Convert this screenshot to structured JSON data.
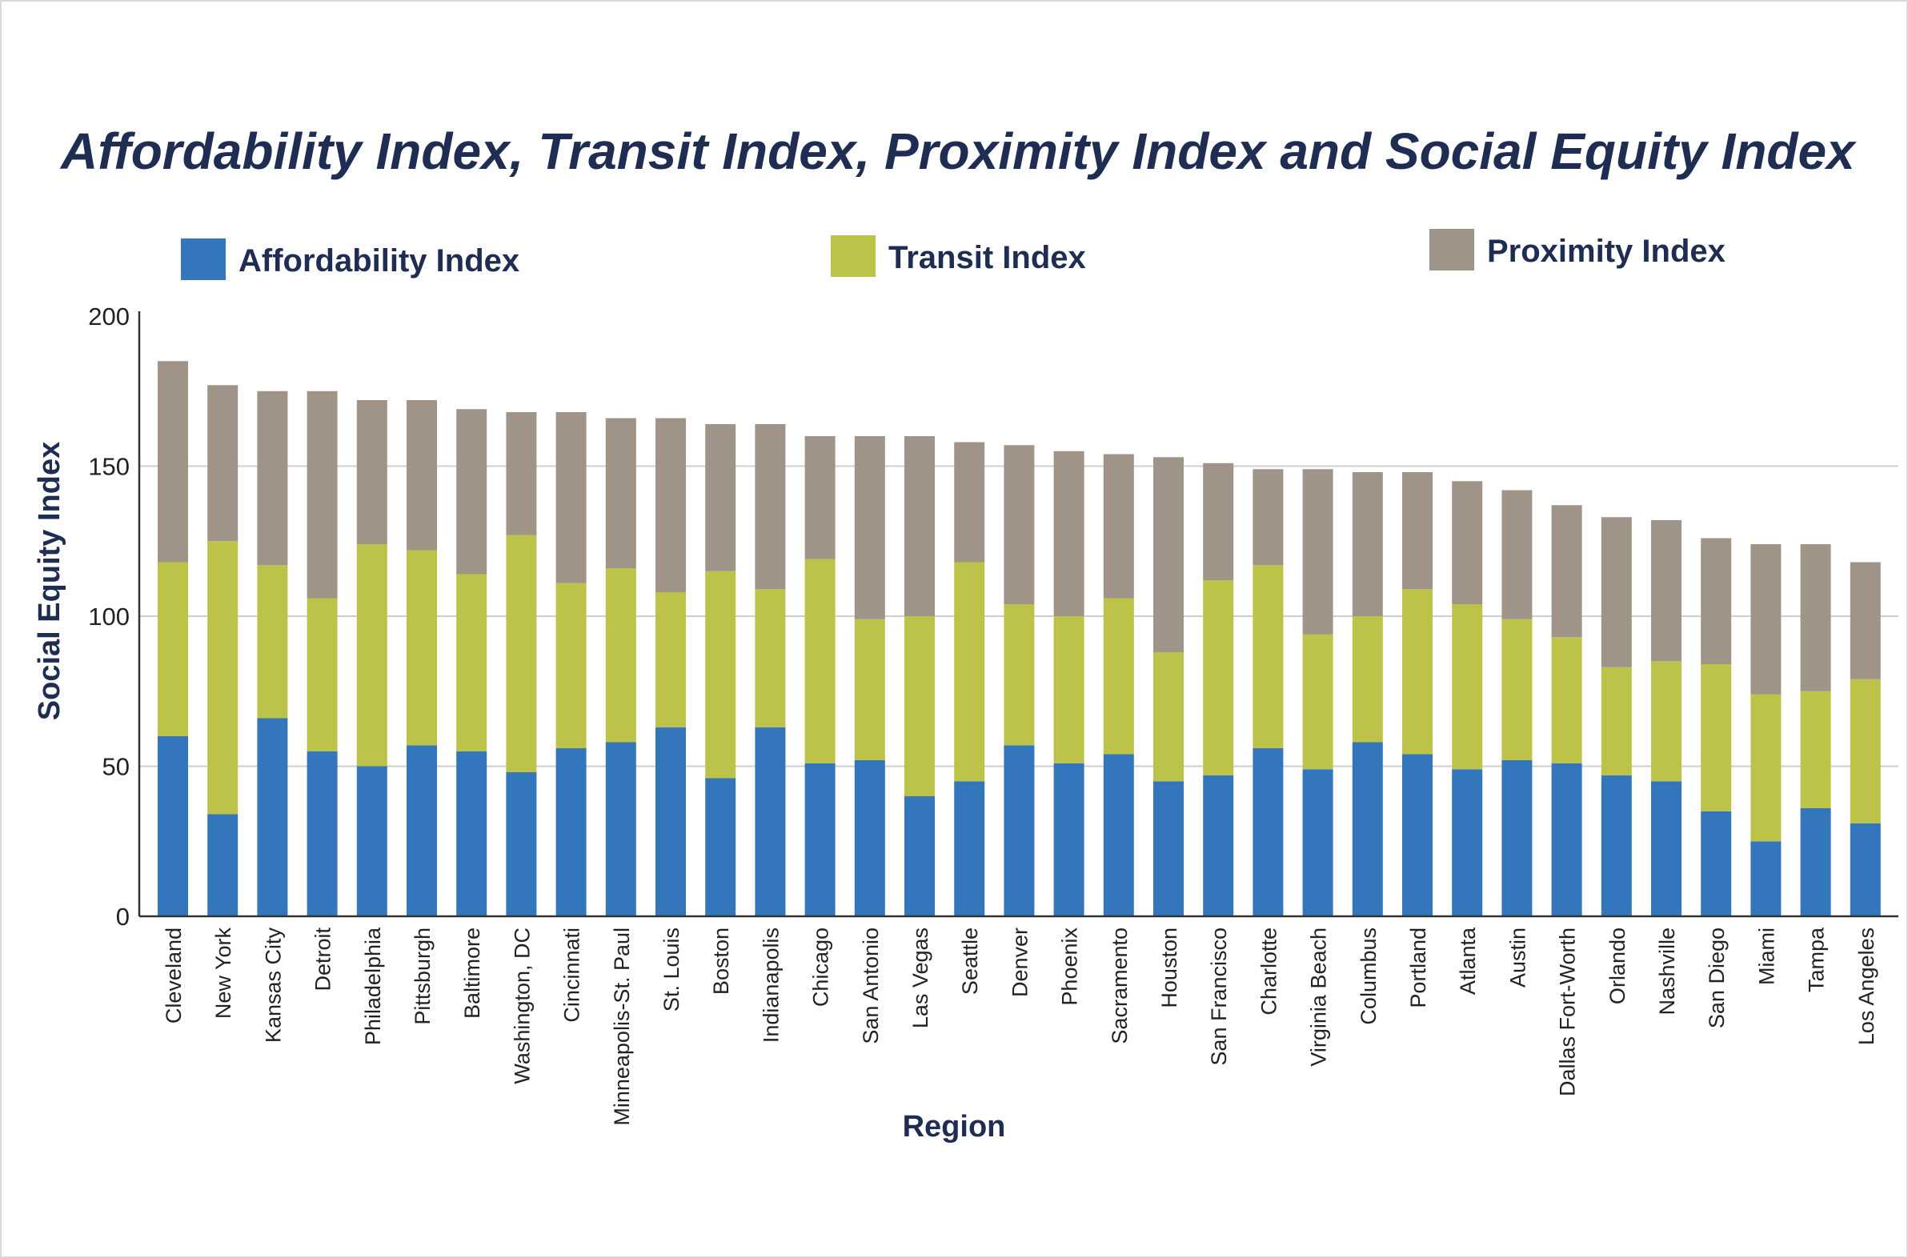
{
  "chart_data": {
    "type": "bar",
    "stacked": true,
    "title": "Affordability Index, Transit Index, Proximity Index and Social Equity Index",
    "xlabel": "Region",
    "ylabel": "Social Equity Index",
    "ylim": [
      0,
      200
    ],
    "yticks": [
      0,
      50,
      100,
      150,
      200
    ],
    "grid": "horizontal",
    "legend_position": "top",
    "categories": [
      "Cleveland",
      "New York",
      "Kansas City",
      "Detroit",
      "Philadelphia",
      "Pittsburgh",
      "Baltimore",
      "Washington, DC",
      "Cincinnati",
      "Minneapolis-St. Paul",
      "St. Louis",
      "Boston",
      "Indianapolis",
      "Chicago",
      "San Antonio",
      "Las Vegas",
      "Seattle",
      "Denver",
      "Phoenix",
      "Sacramento",
      "Houston",
      "San Francisco",
      "Charlotte",
      "Virginia Beach",
      "Columbus",
      "Portland",
      "Atlanta",
      "Austin",
      "Dallas Fort-Worth",
      "Orlando",
      "Nashville",
      "San Diego",
      "Miami",
      "Tampa",
      "Los Angeles"
    ],
    "series": [
      {
        "name": "Affordability Index",
        "color": "#3476bb",
        "values": [
          60,
          34,
          66,
          55,
          50,
          57,
          55,
          48,
          56,
          58,
          63,
          46,
          63,
          51,
          52,
          40,
          45,
          57,
          51,
          54,
          45,
          47,
          56,
          49,
          58,
          54,
          49,
          52,
          51,
          47,
          45,
          35,
          25,
          36,
          31
        ]
      },
      {
        "name": "Transit Index",
        "color": "#bcc348",
        "values": [
          58,
          91,
          51,
          51,
          74,
          65,
          59,
          79,
          55,
          58,
          45,
          69,
          46,
          68,
          47,
          60,
          73,
          47,
          49,
          52,
          43,
          65,
          61,
          45,
          42,
          55,
          55,
          47,
          42,
          36,
          40,
          49,
          49,
          39,
          48
        ]
      },
      {
        "name": "Proximity Index",
        "color": "#a09489",
        "values": [
          67,
          52,
          58,
          69,
          48,
          50,
          55,
          41,
          57,
          50,
          58,
          49,
          55,
          41,
          61,
          60,
          40,
          53,
          55,
          48,
          65,
          39,
          32,
          55,
          48,
          39,
          41,
          43,
          44,
          50,
          47,
          42,
          50,
          49,
          39
        ]
      }
    ]
  }
}
